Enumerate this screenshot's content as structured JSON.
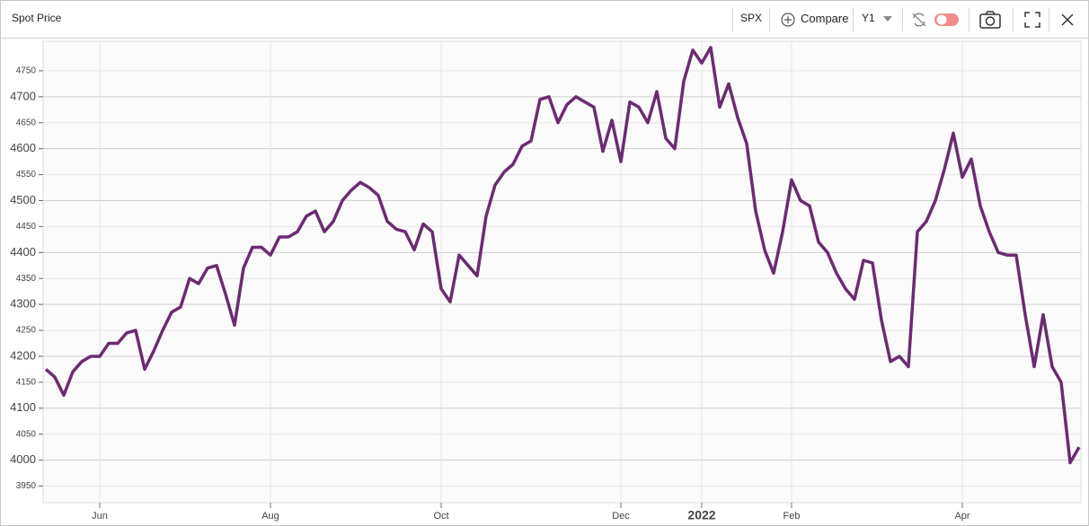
{
  "toolbar": {
    "symbol": "SPX",
    "compare": "Compare",
    "axis": "Y1"
  },
  "chart_data": {
    "type": "line",
    "title": "Spot Price",
    "color": "#6a2c70",
    "categories": [
      null,
      null,
      null,
      null,
      null,
      null,
      "Jun",
      null,
      null,
      null,
      null,
      null,
      null,
      null,
      null,
      null,
      null,
      null,
      null,
      null,
      null,
      null,
      null,
      null,
      null,
      "Aug",
      null,
      null,
      null,
      null,
      null,
      null,
      null,
      null,
      null,
      null,
      null,
      null,
      null,
      null,
      null,
      null,
      null,
      null,
      "Oct",
      null,
      null,
      null,
      null,
      null,
      null,
      null,
      null,
      null,
      null,
      null,
      null,
      null,
      null,
      null,
      null,
      null,
      null,
      null,
      "Dec",
      null,
      null,
      null,
      null,
      null,
      null,
      null,
      null,
      "2022",
      null,
      null,
      null,
      null,
      null,
      null,
      null,
      null,
      null,
      "Feb",
      null,
      null,
      null,
      null,
      null,
      null,
      null,
      null,
      null,
      null,
      null,
      null,
      null,
      null,
      null,
      null,
      null,
      null,
      "Apr",
      null,
      null,
      null,
      null,
      null,
      null,
      null,
      null,
      null,
      null,
      null,
      null,
      null
    ],
    "values": [
      4175,
      4160,
      4125,
      4170,
      4190,
      4200,
      4200,
      4225,
      4225,
      4245,
      4250,
      4175,
      4210,
      4250,
      4285,
      4295,
      4350,
      4340,
      4370,
      4375,
      4320,
      4260,
      4370,
      4410,
      4410,
      4395,
      4430,
      4430,
      4440,
      4470,
      4480,
      4440,
      4460,
      4500,
      4520,
      4535,
      4525,
      4510,
      4460,
      4445,
      4440,
      4405,
      4455,
      4440,
      4330,
      4305,
      4395,
      4375,
      4355,
      4470,
      4530,
      4555,
      4570,
      4605,
      4615,
      4695,
      4700,
      4650,
      4685,
      4700,
      4690,
      4680,
      4595,
      4655,
      4575,
      4690,
      4680,
      4650,
      4710,
      4620,
      4600,
      4730,
      4790,
      4765,
      4795,
      4680,
      4725,
      4660,
      4610,
      4480,
      4405,
      4360,
      4440,
      4540,
      4500,
      4490,
      4420,
      4400,
      4360,
      4330,
      4310,
      4385,
      4380,
      4270,
      4190,
      4200,
      4180,
      4440,
      4460,
      4500,
      4560,
      4630,
      4545,
      4580,
      4490,
      4440,
      4400,
      4395,
      4395,
      4280,
      4180,
      4280,
      4180,
      4150,
      3995,
      4025
    ],
    "ylim": [
      3925,
      4800
    ],
    "yticks": [
      3950,
      4000,
      4050,
      4100,
      4150,
      4200,
      4250,
      4300,
      4350,
      4400,
      4450,
      4500,
      4550,
      4600,
      4650,
      4700,
      4750
    ],
    "grid": true
  }
}
